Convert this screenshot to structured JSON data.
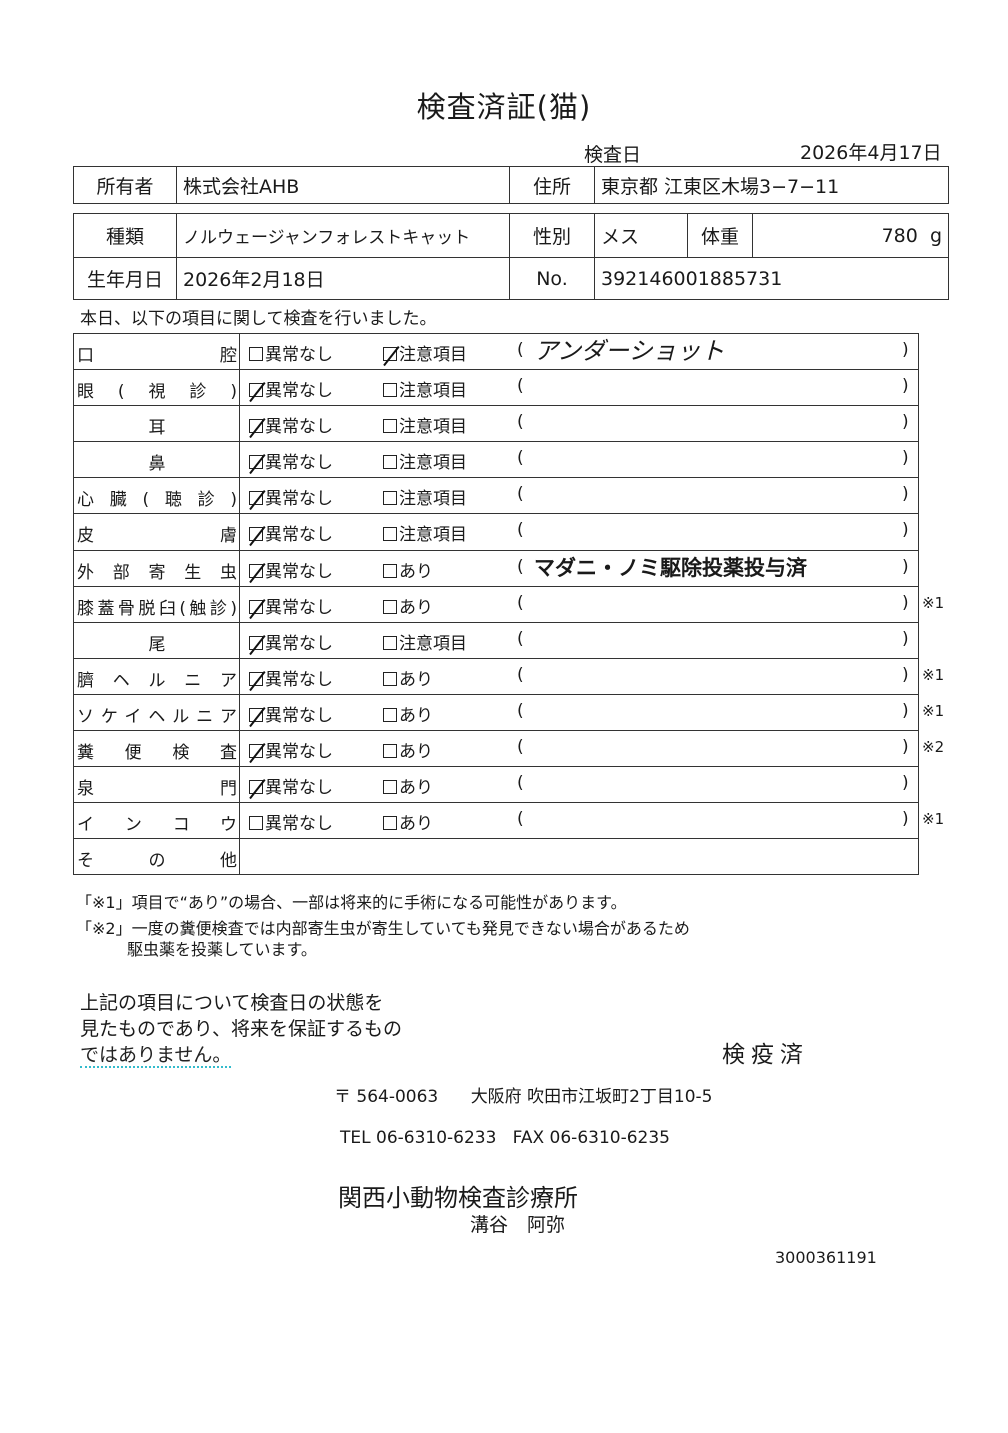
{
  "title": "検査済証(猫)",
  "inspection_date_label": "検査日",
  "inspection_date": "2026年4月17日",
  "owner": {
    "label": "所有者",
    "value": "株式会社AHB",
    "address_label": "住所",
    "address": "東京都 江東区木場3−7−11"
  },
  "animal": {
    "breed_label": "種類",
    "breed": "ノルウェージャンフォレストキャット",
    "sex_label": "性別",
    "sex": "メス",
    "weight_label": "体重",
    "weight": "780",
    "weight_unit": "g",
    "birth_label": "生年月日",
    "birth": "2026年2月18日",
    "no_label": "No.",
    "no": "392146001885731"
  },
  "intro": "本日、以下の項目に関して検査を行いました。",
  "paren_open": "(",
  "paren_close": ")",
  "rows": [
    {
      "label": "口腔",
      "opt1": "異常なし",
      "opt2": "注意項目",
      "checked": "opt2",
      "note": "アンダーショット",
      "note_style": "hand",
      "mark": ""
    },
    {
      "label": "眼(視診)",
      "opt1": "異常なし",
      "opt2": "注意項目",
      "checked": "opt1",
      "note": "",
      "mark": ""
    },
    {
      "label": "耳",
      "opt1": "異常なし",
      "opt2": "注意項目",
      "checked": "opt1",
      "note": "",
      "mark": ""
    },
    {
      "label": "鼻",
      "opt1": "異常なし",
      "opt2": "注意項目",
      "checked": "opt1",
      "note": "",
      "mark": ""
    },
    {
      "label": "心臓(聴診)",
      "opt1": "異常なし",
      "opt2": "注意項目",
      "checked": "opt1",
      "note": "",
      "mark": ""
    },
    {
      "label": "皮膚",
      "opt1": "異常なし",
      "opt2": "注意項目",
      "checked": "opt1",
      "note": "",
      "mark": ""
    },
    {
      "label": "外部寄生虫",
      "opt1": "異常なし",
      "opt2": "あり",
      "checked": "opt1",
      "note": "マダニ・ノミ駆除投薬投与済",
      "note_style": "print",
      "mark": ""
    },
    {
      "label": "膝蓋骨脱臼(触診)",
      "opt1": "異常なし",
      "opt2": "あり",
      "checked": "opt1",
      "note": "",
      "mark": "※1"
    },
    {
      "label": "尾",
      "opt1": "異常なし",
      "opt2": "注意項目",
      "checked": "opt1",
      "note": "",
      "mark": ""
    },
    {
      "label": "臍ヘルニア",
      "opt1": "異常なし",
      "opt2": "あり",
      "checked": "opt1",
      "note": "",
      "mark": "※1"
    },
    {
      "label": "ソケイヘルニア",
      "opt1": "異常なし",
      "opt2": "あり",
      "checked": "opt1",
      "note": "",
      "mark": "※1"
    },
    {
      "label": "糞便検査",
      "opt1": "異常なし",
      "opt2": "あり",
      "checked": "opt1",
      "note": "",
      "mark": "※2"
    },
    {
      "label": "泉門",
      "opt1": "異常なし",
      "opt2": "あり",
      "checked": "opt1",
      "note": "",
      "mark": ""
    },
    {
      "label": "インコウ",
      "opt1": "異常なし",
      "opt2": "あり",
      "checked": "",
      "note": "",
      "mark": "※1"
    },
    {
      "label": "その他",
      "other": true
    }
  ],
  "footnotes": {
    "note1": "「※1」項目で“あり”の場合、一部は将来的に手術になる可能性があります。",
    "note2": "「※2」一度の糞便検査では内部寄生虫が寄生していても発見できない場合があるため",
    "note2_cont": "駆虫薬を投薬しています。"
  },
  "disclaimer": {
    "line1": "上記の項目について検査日の状態を",
    "line2": "見たものであり、将来を保証するもの",
    "line3": "ではありません。"
  },
  "stamp": "検疫済",
  "clinic": {
    "postal": "〒 564-0063",
    "address": "大阪府 吹田市江坂町2丁目10-5",
    "tel": "TEL 06-6310-6233",
    "fax": "FAX 06-6310-6235",
    "name": "関西小動物検査診療所",
    "person": "溝谷　阿弥"
  },
  "document_code": "3000361191"
}
